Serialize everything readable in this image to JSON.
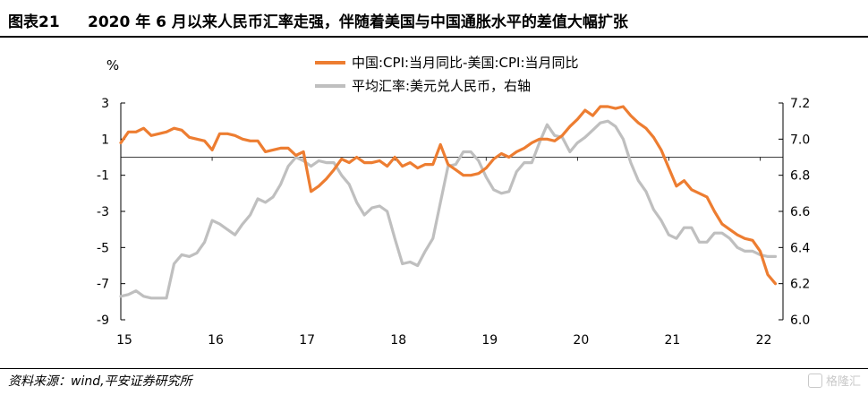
{
  "header": {
    "figure_label": "图表21",
    "title": "2020 年 6 月以来人民币汇率走强，伴随着美国与中国通胀水平的差值大幅扩张"
  },
  "footer": {
    "source": "资料来源：wind,平安证券研究所",
    "watermark": "格隆汇"
  },
  "chart_data": {
    "type": "line",
    "title": "",
    "left_axis": {
      "label": "%",
      "range": [
        -9,
        3
      ],
      "ticks": [
        3,
        1,
        -1,
        -3,
        -5,
        -7,
        -9
      ]
    },
    "right_axis": {
      "label": "",
      "range": [
        6.0,
        7.2
      ],
      "ticks": [
        "7.2",
        "7.0",
        "6.8",
        "6.6",
        "6.4",
        "6.2",
        "6.0"
      ]
    },
    "x_axis": {
      "ticks": [
        "15",
        "16",
        "17",
        "18",
        "19",
        "20",
        "21",
        "22"
      ],
      "range": [
        2015.0,
        2022.25
      ]
    },
    "legend_position": "top",
    "series": [
      {
        "name": "中国:CPI:当月同比-美国:CPI:当月同比",
        "axis": "left",
        "color": "#ED7D31",
        "x": [
          2015.0,
          2015.083,
          2015.167,
          2015.25,
          2015.333,
          2015.417,
          2015.5,
          2015.583,
          2015.667,
          2015.75,
          2015.833,
          2015.917,
          2016.0,
          2016.083,
          2016.167,
          2016.25,
          2016.333,
          2016.417,
          2016.5,
          2016.583,
          2016.667,
          2016.75,
          2016.833,
          2016.917,
          2017.0,
          2017.083,
          2017.167,
          2017.25,
          2017.333,
          2017.417,
          2017.5,
          2017.583,
          2017.667,
          2017.75,
          2017.833,
          2017.917,
          2018.0,
          2018.083,
          2018.167,
          2018.25,
          2018.333,
          2018.417,
          2018.5,
          2018.583,
          2018.667,
          2018.75,
          2018.833,
          2018.917,
          2019.0,
          2019.083,
          2019.167,
          2019.25,
          2019.333,
          2019.417,
          2019.5,
          2019.583,
          2019.667,
          2019.75,
          2019.833,
          2019.917,
          2020.0,
          2020.083,
          2020.167,
          2020.25,
          2020.333,
          2020.417,
          2020.5,
          2020.583,
          2020.667,
          2020.75,
          2020.833,
          2020.917,
          2021.0,
          2021.083,
          2021.167,
          2021.25,
          2021.333,
          2021.417,
          2021.5,
          2021.583,
          2021.667,
          2021.75,
          2021.833,
          2021.917,
          2022.0,
          2022.083,
          2022.167
        ],
        "values": [
          0.8,
          1.4,
          1.4,
          1.6,
          1.2,
          1.3,
          1.4,
          1.6,
          1.5,
          1.1,
          1.0,
          0.9,
          0.4,
          1.3,
          1.3,
          1.2,
          1.0,
          0.9,
          0.9,
          0.3,
          0.4,
          0.5,
          0.5,
          0.1,
          0.3,
          -1.9,
          -1.6,
          -1.2,
          -0.7,
          -0.1,
          -0.3,
          0.0,
          -0.3,
          -0.3,
          -0.2,
          -0.5,
          0.0,
          -0.5,
          -0.3,
          -0.6,
          -0.4,
          -0.4,
          0.7,
          -0.4,
          -0.7,
          -1.0,
          -1.0,
          -0.9,
          -0.6,
          -0.1,
          0.2,
          0.0,
          0.3,
          0.5,
          0.8,
          1.0,
          1.0,
          0.9,
          1.2,
          1.7,
          2.1,
          2.6,
          2.3,
          2.8,
          2.8,
          2.7,
          2.8,
          2.3,
          1.9,
          1.6,
          1.1,
          0.4,
          -0.6,
          -1.6,
          -1.3,
          -1.8,
          -2.0,
          -2.2,
          -3.0,
          -3.7,
          -4.0,
          -4.3,
          -4.5,
          -4.6,
          -5.2,
          -6.5,
          -7.0
        ]
      },
      {
        "name": "平均汇率:美元兑人民币，右轴",
        "axis": "right",
        "color": "#BFBFBF",
        "x": [
          2015.0,
          2015.083,
          2015.167,
          2015.25,
          2015.333,
          2015.417,
          2015.5,
          2015.583,
          2015.667,
          2015.75,
          2015.833,
          2015.917,
          2016.0,
          2016.083,
          2016.167,
          2016.25,
          2016.333,
          2016.417,
          2016.5,
          2016.583,
          2016.667,
          2016.75,
          2016.833,
          2016.917,
          2017.0,
          2017.083,
          2017.167,
          2017.25,
          2017.333,
          2017.417,
          2017.5,
          2017.583,
          2017.667,
          2017.75,
          2017.833,
          2017.917,
          2018.0,
          2018.083,
          2018.167,
          2018.25,
          2018.333,
          2018.417,
          2018.5,
          2018.583,
          2018.667,
          2018.75,
          2018.833,
          2018.917,
          2019.0,
          2019.083,
          2019.167,
          2019.25,
          2019.333,
          2019.417,
          2019.5,
          2019.583,
          2019.667,
          2019.75,
          2019.833,
          2019.917,
          2020.0,
          2020.083,
          2020.167,
          2020.25,
          2020.333,
          2020.417,
          2020.5,
          2020.583,
          2020.667,
          2020.75,
          2020.833,
          2020.917,
          2021.0,
          2021.083,
          2021.167,
          2021.25,
          2021.333,
          2021.417,
          2021.5,
          2021.583,
          2021.667,
          2021.75,
          2021.833,
          2021.917,
          2022.0,
          2022.083,
          2022.167
        ],
        "values": [
          6.13,
          6.14,
          6.16,
          6.13,
          6.12,
          6.12,
          6.12,
          6.31,
          6.36,
          6.35,
          6.37,
          6.43,
          6.55,
          6.53,
          6.5,
          6.47,
          6.53,
          6.58,
          6.67,
          6.65,
          6.68,
          6.75,
          6.85,
          6.9,
          6.88,
          6.85,
          6.88,
          6.87,
          6.87,
          6.8,
          6.75,
          6.65,
          6.58,
          6.62,
          6.63,
          6.6,
          6.45,
          6.31,
          6.32,
          6.3,
          6.38,
          6.45,
          6.65,
          6.85,
          6.86,
          6.93,
          6.93,
          6.88,
          6.79,
          6.72,
          6.7,
          6.71,
          6.82,
          6.87,
          6.87,
          6.98,
          7.08,
          7.02,
          7.01,
          6.93,
          6.98,
          7.01,
          7.05,
          7.09,
          7.1,
          7.07,
          7.0,
          6.87,
          6.77,
          6.71,
          6.61,
          6.55,
          6.47,
          6.45,
          6.51,
          6.51,
          6.43,
          6.43,
          6.48,
          6.48,
          6.45,
          6.4,
          6.38,
          6.38,
          6.36,
          6.35,
          6.35
        ]
      }
    ]
  }
}
